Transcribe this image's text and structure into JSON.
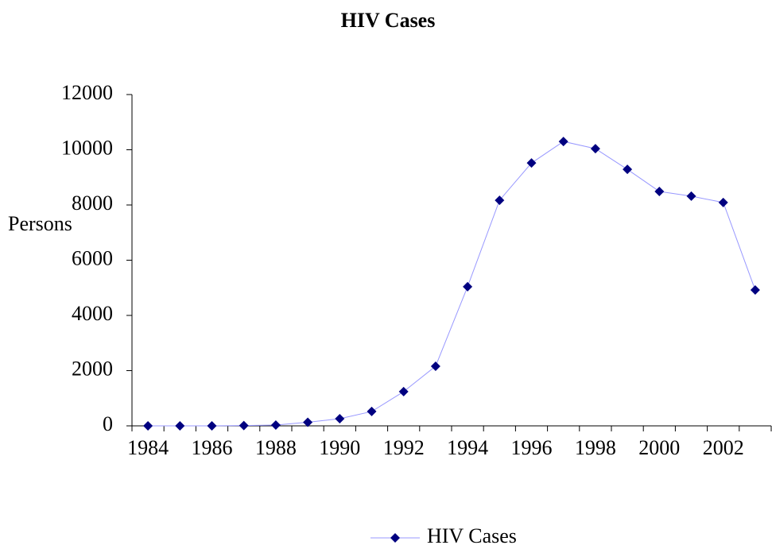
{
  "chart_data": {
    "type": "line",
    "title": "HIV Cases",
    "y_label": "Persons",
    "categories": [
      "1984",
      null,
      "1986",
      null,
      "1988",
      null,
      "1990",
      null,
      "1992",
      null,
      "1994",
      null,
      "1996",
      null,
      "1998",
      null,
      "2000",
      null,
      "2002",
      null
    ],
    "series": [
      {
        "name": "HIV Cases",
        "color": "#000080",
        "line_color": "#9999ff",
        "values": [
          0,
          0,
          0,
          10,
          30,
          130,
          260,
          520,
          1240,
          2160,
          5040,
          8170,
          9520,
          10300,
          10040,
          9290,
          8490,
          8320,
          8090,
          4920
        ]
      }
    ],
    "ylim": [
      0,
      12000
    ],
    "yticks": [
      0,
      2000,
      4000,
      6000,
      8000,
      10000,
      12000
    ],
    "grid": false,
    "legend": "bottom"
  }
}
